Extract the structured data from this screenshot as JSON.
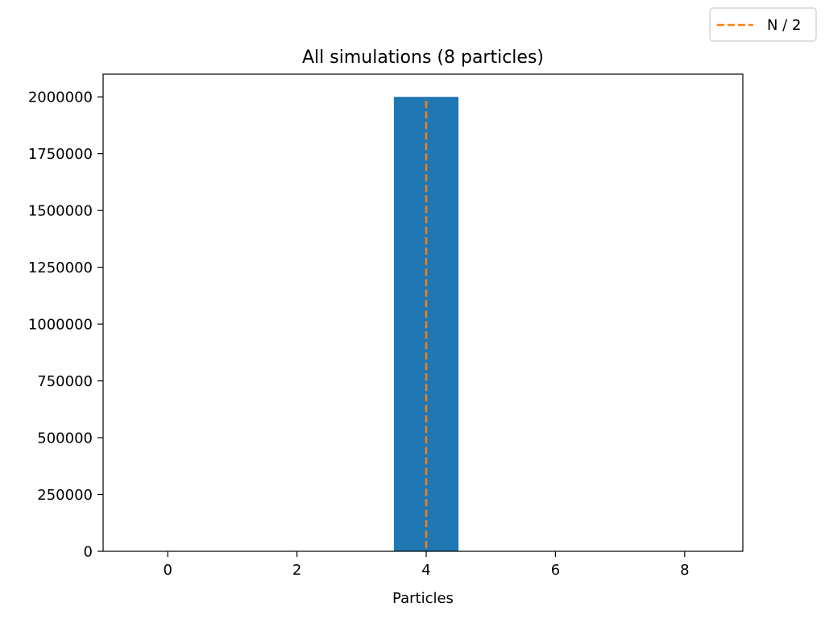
{
  "chart_data": {
    "type": "bar",
    "title": "All simulations (8 particles)",
    "xlabel": "Particles",
    "ylabel": "",
    "xlim": [
      -1,
      8.9
    ],
    "ylim": [
      0,
      2100000
    ],
    "x_ticks": [
      0,
      2,
      4,
      6,
      8
    ],
    "y_ticks": [
      0,
      250000,
      500000,
      750000,
      1000000,
      1250000,
      1500000,
      1750000,
      2000000
    ],
    "bar_width": 1,
    "bars": [
      {
        "x": 4,
        "value": 2000000
      }
    ],
    "bar_color": "#1f77b4",
    "vlines": [
      {
        "name": "N / 2",
        "x": 4,
        "color": "#ff7f0e",
        "style": "dashed"
      }
    ],
    "legend": {
      "placement": "top-right",
      "entries": [
        "N / 2"
      ]
    },
    "grid": false
  }
}
